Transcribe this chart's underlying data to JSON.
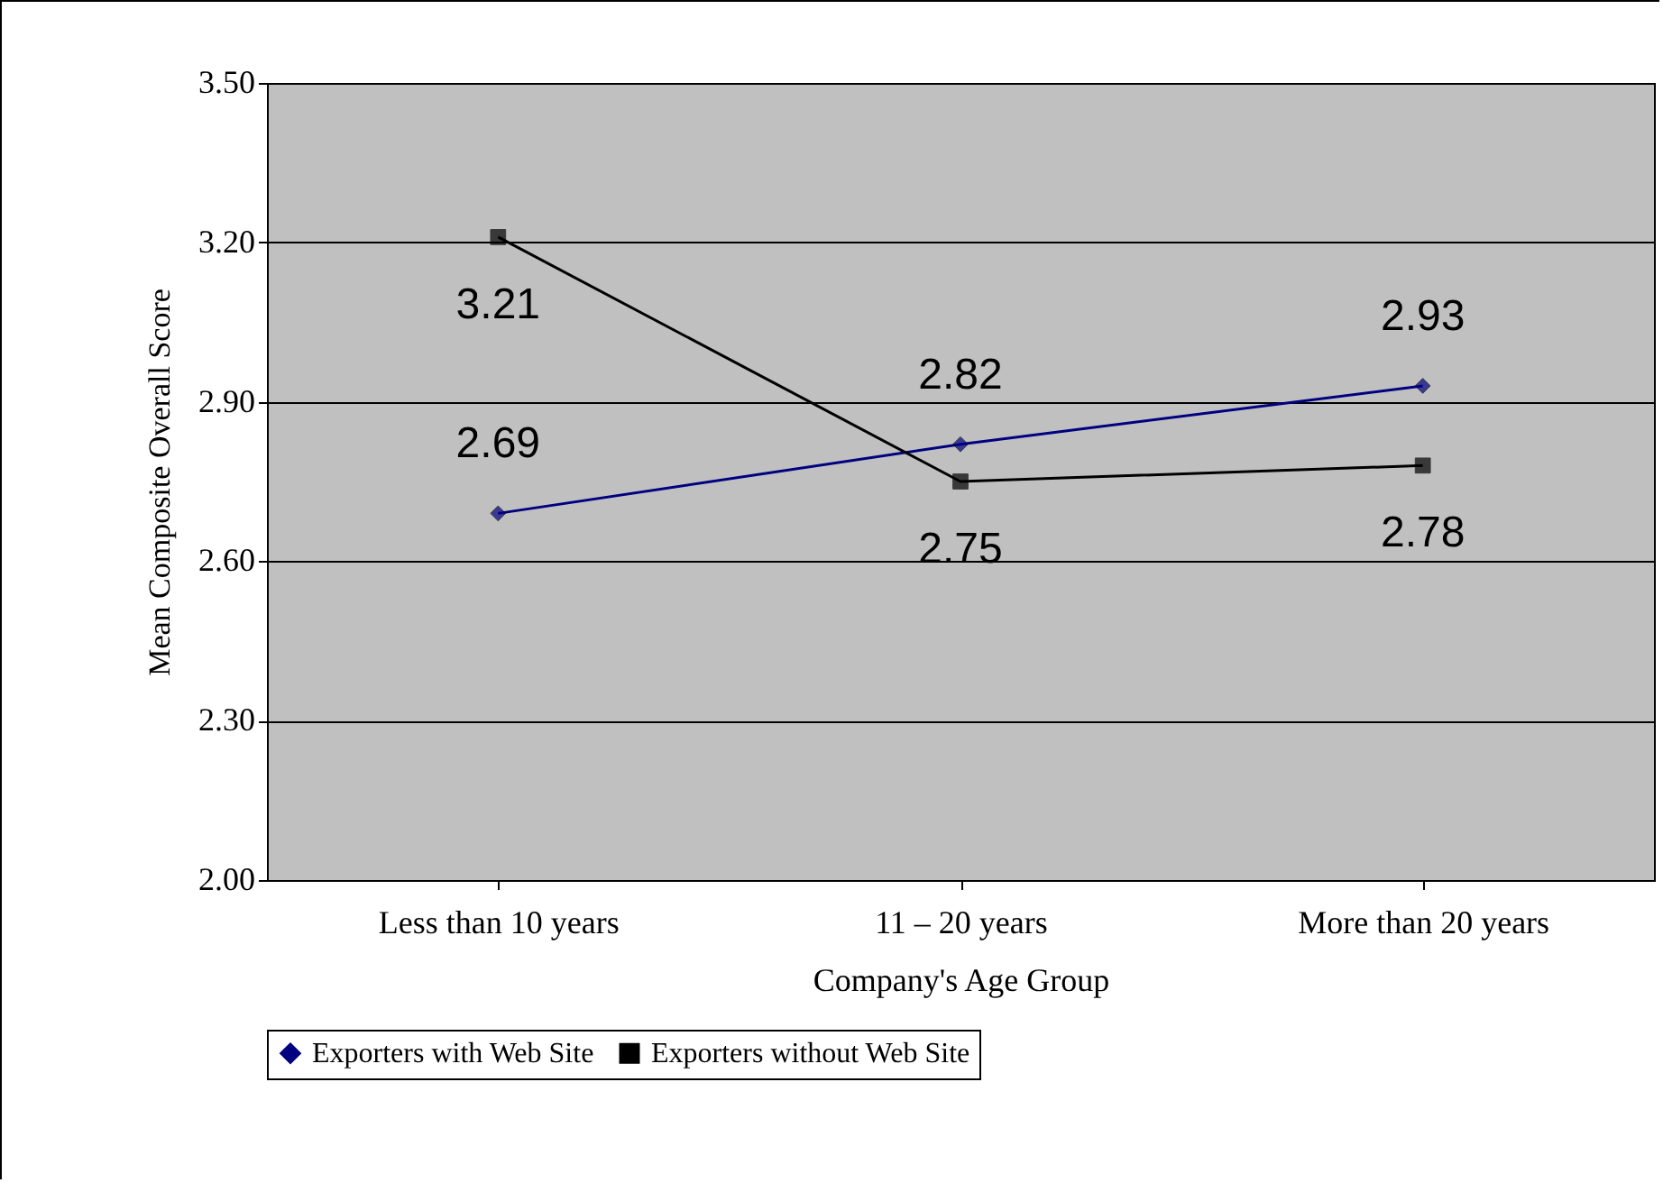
{
  "chart_data": {
    "type": "line",
    "xlabel": "Company's Age Group",
    "ylabel": "Mean Composite Overall Score",
    "categories": [
      "Less than 10 years",
      "11 – 20 years",
      "More than 20 years"
    ],
    "series": [
      {
        "name": "Exporters with Web Site",
        "color": "#000080",
        "marker": "diamond",
        "values": [
          2.69,
          2.82,
          2.93
        ]
      },
      {
        "name": "Exporters without Web Site",
        "color": "#000000",
        "marker": "square",
        "values": [
          3.21,
          2.75,
          2.78
        ]
      }
    ],
    "ylim": [
      2.0,
      3.5
    ],
    "yticks": [
      {
        "value": 2.0,
        "label": "2.00"
      },
      {
        "value": 2.3,
        "label": "2.30"
      },
      {
        "value": 2.6,
        "label": "2.60"
      },
      {
        "value": 2.9,
        "label": "2.90"
      },
      {
        "value": 3.2,
        "label": "3.20"
      },
      {
        "value": 3.5,
        "label": "3.50"
      }
    ],
    "grid": "y",
    "legend": "bottom",
    "data_labels": true,
    "line_style": "solid"
  }
}
